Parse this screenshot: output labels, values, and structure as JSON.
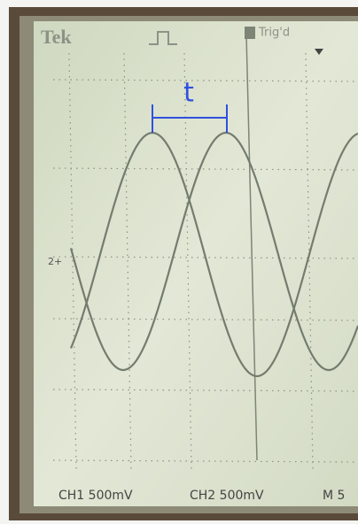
{
  "header": {
    "brand": "Tek",
    "status": "Trig'd"
  },
  "annotation": "t",
  "marker": "2+",
  "footer": {
    "ch1": "CH1 500mV",
    "ch2": "CH2 500mV",
    "timebase": "M 5"
  }
}
